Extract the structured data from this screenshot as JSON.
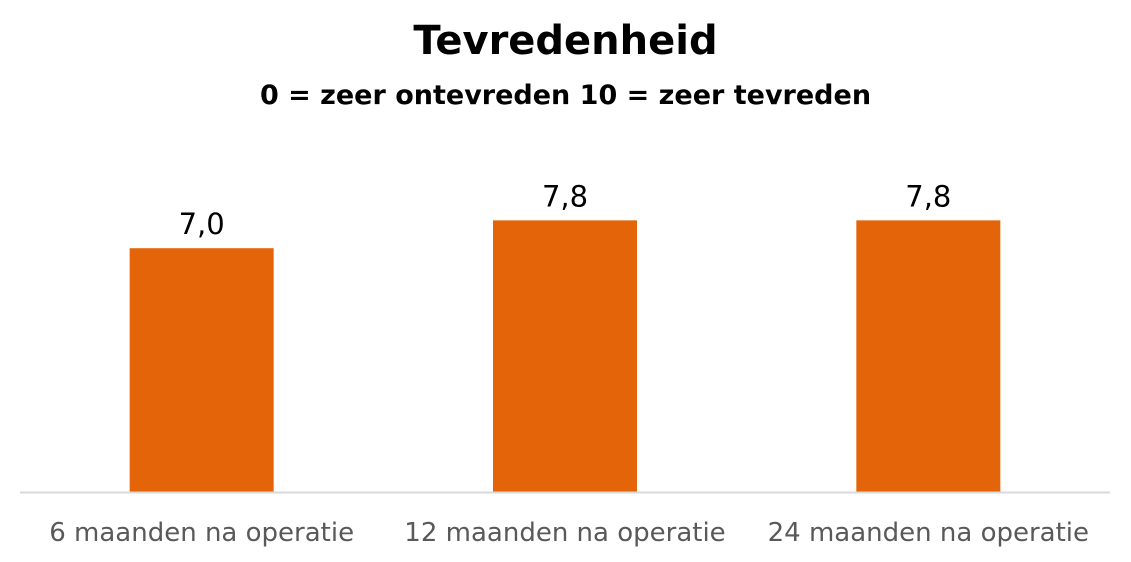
{
  "chart_data": {
    "type": "bar",
    "title": "Tevredenheid",
    "subtitle": "0 = zeer ontevreden  10 = zeer tevreden",
    "categories": [
      "6 maanden na operatie",
      "12 maanden na operatie",
      "24 maanden na operatie"
    ],
    "values": [
      7.0,
      7.8,
      7.8
    ],
    "data_labels": [
      "7,0",
      "7,8",
      "7,8"
    ],
    "xlabel": "",
    "ylabel": "",
    "ylim": [
      0,
      8.7
    ],
    "grid": false,
    "legend": "none",
    "colors": {
      "bar": "#E36409",
      "axis": "#D9D9D9",
      "tick_text": "#595959",
      "label_text": "#000000"
    }
  }
}
